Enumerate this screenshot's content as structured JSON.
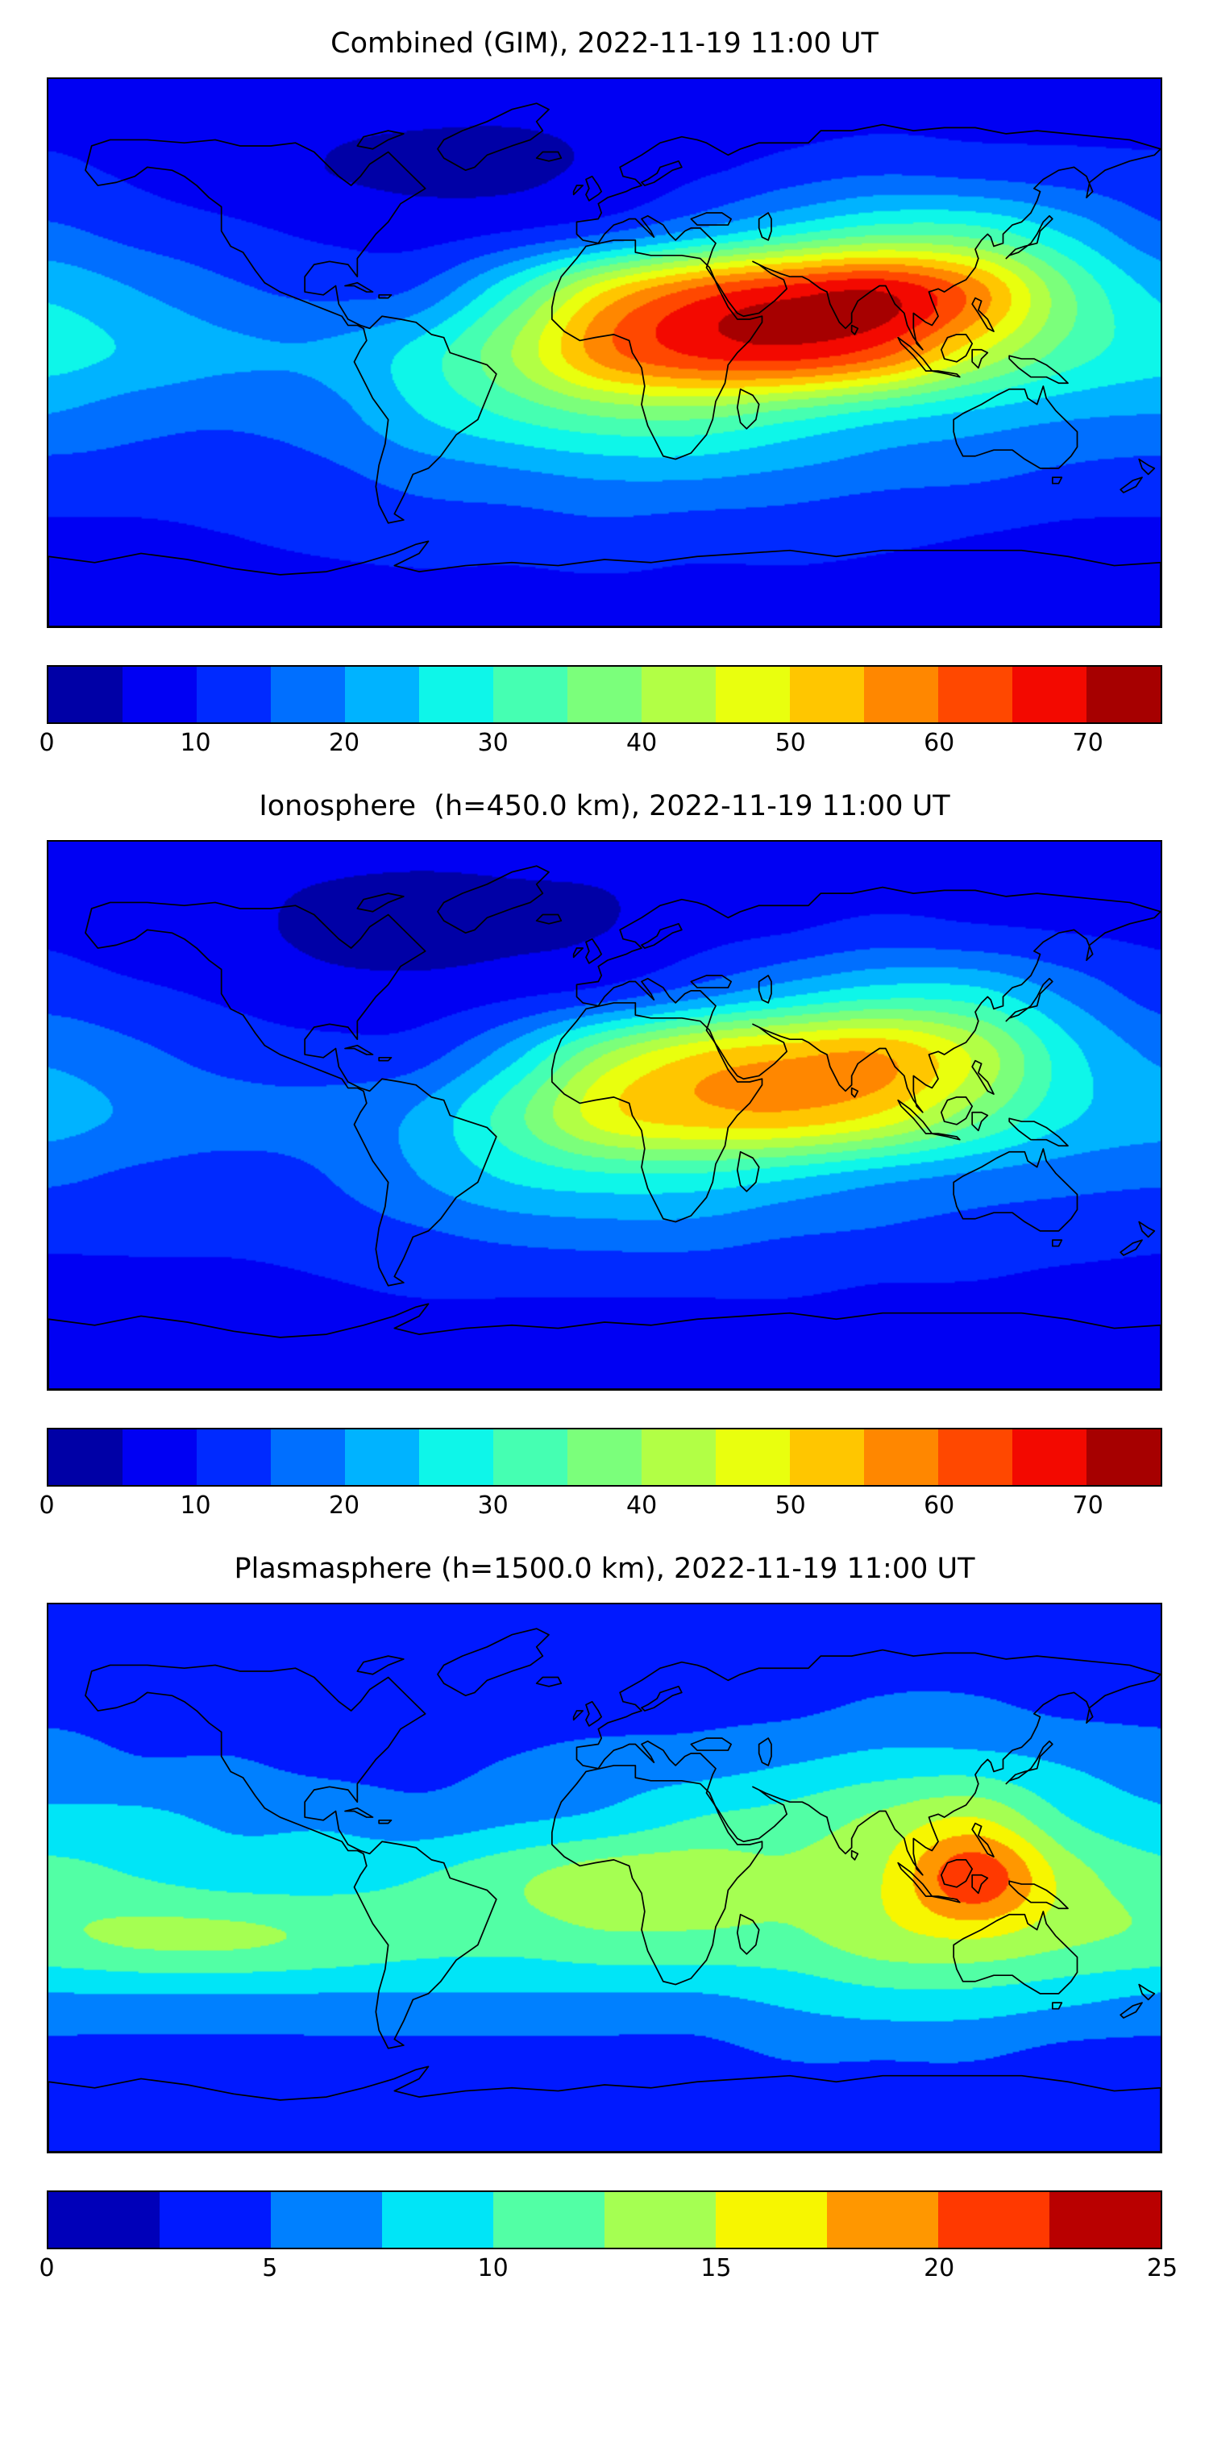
{
  "chart_data": [
    {
      "type": "heatmap",
      "title": "Combined (GIM), 2022-11-19 11:00 UT",
      "colormap": "jet",
      "projection": "equirectangular",
      "lon_range": [
        -180,
        180
      ],
      "lat_range": [
        -90,
        90
      ],
      "lons": [
        -180,
        -150,
        -120,
        -90,
        -60,
        -30,
        0,
        30,
        60,
        90,
        120,
        150,
        180
      ],
      "lats": [
        90,
        60,
        40,
        20,
        0,
        -20,
        -40,
        -60,
        -90
      ],
      "values": [
        [
          7,
          7,
          7,
          7,
          7,
          7,
          7,
          7,
          7,
          7,
          7,
          7,
          7
        ],
        [
          11,
          9,
          7,
          5,
          4,
          4,
          6,
          9,
          12,
          14,
          13,
          12,
          11
        ],
        [
          16,
          13,
          11,
          9,
          8,
          10,
          14,
          21,
          28,
          33,
          32,
          24,
          16
        ],
        [
          24,
          20,
          16,
          14,
          16,
          30,
          50,
          62,
          68,
          70,
          58,
          36,
          24
        ],
        [
          27,
          24,
          21,
          21,
          27,
          40,
          58,
          66,
          68,
          62,
          46,
          33,
          27
        ],
        [
          20,
          17,
          16,
          18,
          25,
          31,
          36,
          37,
          33,
          28,
          24,
          21,
          20
        ],
        [
          13,
          13,
          13,
          14,
          17,
          19,
          21,
          21,
          19,
          17,
          16,
          14,
          13
        ],
        [
          9,
          9,
          10,
          11,
          12,
          12,
          13,
          12,
          12,
          11,
          10,
          9,
          9
        ],
        [
          7,
          7,
          7,
          7,
          7,
          7,
          7,
          7,
          7,
          7,
          7,
          7,
          7
        ]
      ],
      "levels": {
        "min": 0,
        "max": 75,
        "step": 5
      },
      "colorbar_ticks": [
        0,
        10,
        20,
        30,
        40,
        50,
        60,
        70
      ],
      "legend_position": "bottom",
      "grid": false
    },
    {
      "type": "heatmap",
      "title": "Ionosphere  (h=450.0 km), 2022-11-19 11:00 UT",
      "colormap": "jet",
      "projection": "equirectangular",
      "lon_range": [
        -180,
        180
      ],
      "lat_range": [
        -90,
        90
      ],
      "lons": [
        -180,
        -150,
        -120,
        -90,
        -60,
        -30,
        0,
        30,
        60,
        90,
        120,
        150,
        180
      ],
      "lats": [
        90,
        60,
        40,
        20,
        0,
        -20,
        -40,
        -60,
        -90
      ],
      "values": [
        [
          6,
          6,
          6,
          6,
          6,
          6,
          6,
          6,
          6,
          6,
          6,
          6,
          6
        ],
        [
          9,
          7,
          6,
          4,
          3,
          4,
          5,
          8,
          10,
          12,
          11,
          10,
          9
        ],
        [
          13,
          11,
          9,
          7,
          7,
          9,
          12,
          18,
          24,
          28,
          27,
          19,
          13
        ],
        [
          19,
          16,
          13,
          12,
          13,
          23,
          40,
          50,
          54,
          55,
          44,
          27,
          19
        ],
        [
          22,
          19,
          17,
          17,
          21,
          33,
          48,
          53,
          54,
          49,
          37,
          26,
          22
        ],
        [
          16,
          14,
          13,
          15,
          20,
          26,
          29,
          29,
          26,
          22,
          19,
          17,
          16
        ],
        [
          11,
          11,
          11,
          12,
          14,
          16,
          17,
          17,
          15,
          14,
          13,
          12,
          11
        ],
        [
          8,
          8,
          8,
          9,
          10,
          10,
          10,
          10,
          10,
          9,
          9,
          8,
          8
        ],
        [
          6,
          6,
          6,
          6,
          6,
          6,
          6,
          6,
          6,
          6,
          6,
          6,
          6
        ]
      ],
      "levels": {
        "min": 0,
        "max": 75,
        "step": 5
      },
      "colorbar_ticks": [
        0,
        10,
        20,
        30,
        40,
        50,
        60,
        70
      ],
      "legend_position": "bottom",
      "grid": false
    },
    {
      "type": "heatmap",
      "title": "Plasmasphere (h=1500.0 km), 2022-11-19 11:00 UT",
      "colormap": "jet",
      "projection": "equirectangular",
      "lon_range": [
        -180,
        180
      ],
      "lat_range": [
        -90,
        90
      ],
      "lons": [
        -180,
        -150,
        -120,
        -90,
        -60,
        -30,
        0,
        30,
        60,
        90,
        120,
        150,
        180
      ],
      "lats": [
        90,
        60,
        40,
        20,
        0,
        -20,
        -40,
        -60,
        -90
      ],
      "values": [
        [
          3,
          3,
          3,
          3,
          3,
          3,
          3,
          3,
          3,
          3,
          3,
          3,
          3
        ],
        [
          4,
          4,
          3,
          3,
          3,
          3,
          3,
          4,
          4,
          5,
          5,
          4,
          4
        ],
        [
          6,
          5,
          5,
          4,
          4,
          5,
          6,
          6,
          7,
          8,
          8,
          7,
          6
        ],
        [
          8,
          8,
          7,
          7,
          6,
          7,
          8,
          10,
          11,
          13,
          15,
          10,
          8
        ],
        [
          11,
          10,
          9,
          9,
          10,
          12,
          14,
          14,
          13,
          15,
          22,
          14,
          11
        ],
        [
          12,
          13,
          13,
          12,
          11,
          11,
          12,
          12,
          12,
          14,
          15,
          13,
          12
        ],
        [
          7,
          7,
          7,
          7,
          7,
          7,
          7,
          7,
          8,
          9,
          9,
          8,
          7
        ],
        [
          4,
          4,
          4,
          4,
          4,
          4,
          4,
          4,
          5,
          5,
          5,
          4,
          4
        ],
        [
          3,
          3,
          3,
          3,
          3,
          3,
          3,
          3,
          3,
          3,
          3,
          3,
          3
        ]
      ],
      "levels": {
        "min": 0,
        "max": 25,
        "step": 2.5
      },
      "colorbar_ticks": [
        0,
        5,
        10,
        15,
        20,
        25
      ],
      "legend_position": "bottom",
      "grid": false
    }
  ],
  "colors": {
    "coastline": "#000000",
    "background": "#ffffff",
    "frame": "#000000"
  }
}
